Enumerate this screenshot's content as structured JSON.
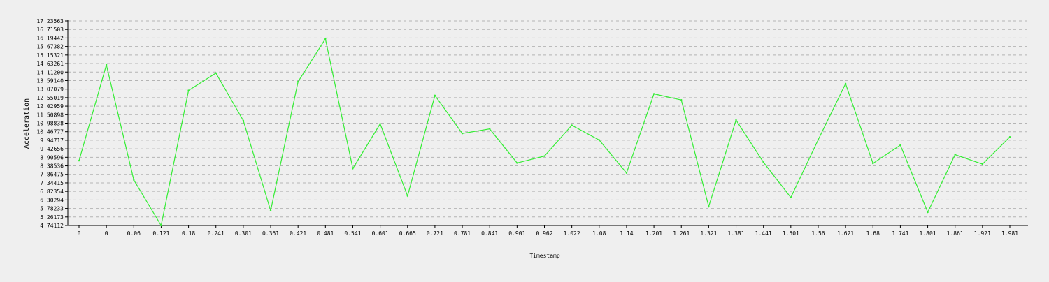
{
  "chart_data": {
    "type": "line",
    "xlabel": "Timestamp",
    "ylabel": "Acceleration",
    "ylim": [
      4.74112,
      17.23563
    ],
    "y_ticks": [
      "4.74112",
      "5.26173",
      "5.78233",
      "6.30294",
      "6.82354",
      "7.34415",
      "7.86475",
      "8.38536",
      "8.90596",
      "9.42656",
      "9.94717",
      "10.46777",
      "10.98838",
      "11.50898",
      "12.02959",
      "12.55019",
      "13.07079",
      "13.59140",
      "14.11200",
      "14.63261",
      "15.15321",
      "15.67382",
      "16.19442",
      "16.71503",
      "17.23563"
    ],
    "x_ticks": [
      "0",
      "0",
      "0.06",
      "0.121",
      "0.18",
      "0.241",
      "0.301",
      "0.361",
      "0.421",
      "0.481",
      "0.541",
      "0.601",
      "0.665",
      "0.721",
      "0.781",
      "0.841",
      "0.901",
      "0.962",
      "1.022",
      "1.08",
      "1.14",
      "1.201",
      "1.261",
      "1.321",
      "1.381",
      "1.441",
      "1.501",
      "1.56",
      "1.621",
      "1.68",
      "1.741",
      "1.801",
      "1.861",
      "1.921",
      "1.981"
    ],
    "grid": true,
    "series": [
      {
        "color": "#33ee33",
        "values": [
          8.7,
          14.55,
          7.52,
          4.74,
          12.99,
          14.05,
          11.15,
          5.65,
          13.52,
          16.14,
          8.22,
          10.95,
          6.55,
          12.68,
          10.36,
          10.64,
          8.56,
          8.98,
          10.86,
          9.96,
          7.95,
          12.78,
          12.41,
          5.9,
          11.18,
          8.6,
          6.45,
          9.98,
          13.4,
          8.53,
          9.65,
          5.55,
          9.07,
          8.49,
          10.15
        ]
      }
    ]
  }
}
